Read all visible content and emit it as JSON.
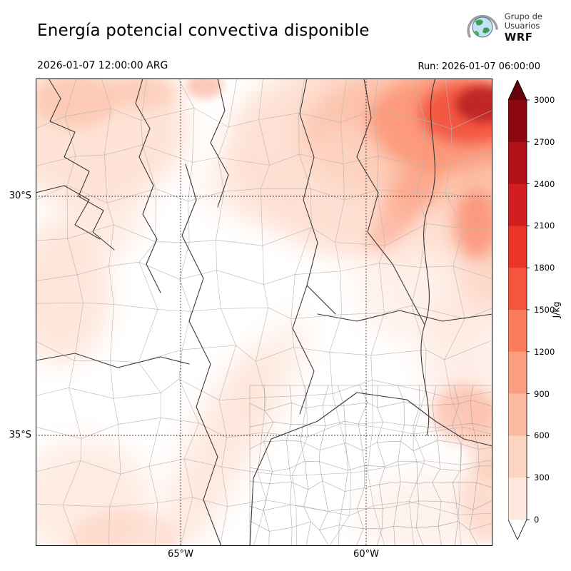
{
  "header": {
    "title": "Energía potencial convectiva disponible",
    "logo": {
      "line1": "Grupo de",
      "line2": "Usuarios",
      "line3": "WRF"
    },
    "valid_time": "2026-01-07 12:00:00 ARG",
    "run_time": "Run: 2026-01-07 06:00:00"
  },
  "map": {
    "y_ticks": [
      "30°S",
      "35°S"
    ],
    "x_ticks": [
      "65°W",
      "60°W"
    ]
  },
  "colorbar": {
    "label": "J/kg",
    "ticks": [
      3000,
      2700,
      2400,
      2100,
      1800,
      1500,
      1200,
      900,
      600,
      300,
      0
    ],
    "band_colors_top_to_bottom": [
      "#8c0912",
      "#b11218",
      "#d21e20",
      "#ea362a",
      "#f5553d",
      "#fb7c5c",
      "#fc9e80",
      "#fcbba1",
      "#fdd4c2",
      "#fee8dd"
    ],
    "over_color": "#67000d",
    "under_color": "#ffffff"
  },
  "chart_data": {
    "type": "heatmap",
    "title": "Energía potencial convectiva disponible",
    "units": "J/kg",
    "valid_time": "2026-01-07 12:00:00 ARG",
    "run_time": "2026-01-07 06:00:00",
    "colorbar_levels": [
      0,
      300,
      600,
      900,
      1200,
      1500,
      1800,
      2100,
      2400,
      2700,
      3000
    ],
    "colorbar_extend": "both",
    "lat_ticks": [
      "30°S",
      "35°S"
    ],
    "lon_ticks": [
      "65°W",
      "60°W"
    ],
    "field_summary": [
      {
        "region": "extremo noreste del dominio",
        "value_range": "1200–2400+"
      },
      {
        "region": "borde este cerca de 30°S",
        "value_range": "600–1200"
      },
      {
        "region": "noroeste",
        "value_range": "300–900"
      },
      {
        "region": "franja diagonal centro-sur y sudoeste",
        "value_range": "0–300"
      },
      {
        "region": "centro del dominio",
        "value_range": "~0"
      }
    ]
  }
}
